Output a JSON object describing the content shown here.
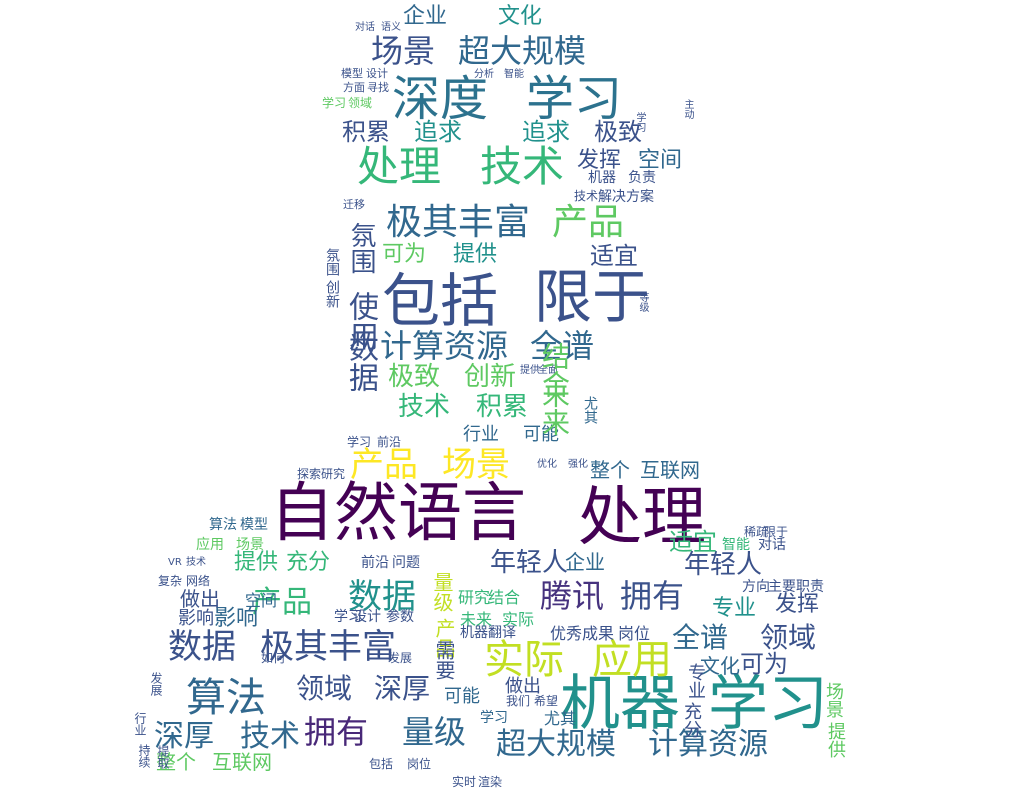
{
  "words": [
    {
      "text": "自然语言",
      "color": "#440154"
    },
    {
      "text": "处理",
      "color": "#440154"
    },
    {
      "text": "包括",
      "color": "#3b528b"
    },
    {
      "text": "限于",
      "color": "#3b528b"
    },
    {
      "text": "机器",
      "color": "#21918c"
    },
    {
      "text": "学习",
      "color": "#21918c"
    },
    {
      "text": "深度",
      "color": "#2c728e"
    },
    {
      "text": "学习",
      "color": "#2c728e"
    },
    {
      "text": "处理",
      "color": "#35b779"
    },
    {
      "text": "技术",
      "color": "#35b779"
    },
    {
      "text": "极其丰富",
      "color": "#31688e"
    },
    {
      "text": "产品",
      "color": "#5ec962"
    },
    {
      "text": "场景",
      "color": "#3b528b"
    },
    {
      "text": "超大规模",
      "color": "#31688e"
    },
    {
      "text": "企业",
      "color": "#31688e"
    },
    {
      "text": "文化",
      "color": "#21918c"
    },
    {
      "text": "积累",
      "color": "#3b528b"
    },
    {
      "text": "追求",
      "color": "#21918c"
    },
    {
      "text": "追求",
      "color": "#21918c"
    },
    {
      "text": "极致",
      "color": "#3b528b"
    },
    {
      "text": "发挥",
      "color": "#3b528b"
    },
    {
      "text": "空间",
      "color": "#31688e"
    },
    {
      "text": "氛围",
      "color": "#3b528b"
    },
    {
      "text": "适宜",
      "color": "#3b528b"
    },
    {
      "text": "可为",
      "color": "#5ec962"
    },
    {
      "text": "提供",
      "color": "#21918c"
    },
    {
      "text": "计算资源",
      "color": "#31688e"
    },
    {
      "text": "全谱",
      "color": "#31688e"
    },
    {
      "text": "极致",
      "color": "#5ec962"
    },
    {
      "text": "创新",
      "color": "#5ec962"
    },
    {
      "text": "技术",
      "color": "#35b779"
    },
    {
      "text": "积累",
      "color": "#35b779"
    },
    {
      "text": "产品",
      "color": "#fde725"
    },
    {
      "text": "场景",
      "color": "#fde725"
    },
    {
      "text": "数据",
      "color": "#21918c"
    },
    {
      "text": "腾讯",
      "color": "#46327e"
    },
    {
      "text": "拥有",
      "color": "#3b528b"
    },
    {
      "text": "实际",
      "color": "#c2df23"
    },
    {
      "text": "应用",
      "color": "#c2df23"
    },
    {
      "text": "数据",
      "color": "#3b528b"
    },
    {
      "text": "极其丰富",
      "color": "#3b528b"
    },
    {
      "text": "算法",
      "color": "#31688e"
    },
    {
      "text": "领域",
      "color": "#3b528b"
    },
    {
      "text": "深厚",
      "color": "#3b528b"
    },
    {
      "text": "深厚",
      "color": "#31688e"
    },
    {
      "text": "技术",
      "color": "#31688e"
    },
    {
      "text": "拥有",
      "color": "#482878"
    },
    {
      "text": "量级",
      "color": "#31688e"
    },
    {
      "text": "超大规模",
      "color": "#31688e"
    },
    {
      "text": "计算资源",
      "color": "#31688e"
    },
    {
      "text": "整个",
      "color": "#5ec962"
    },
    {
      "text": "互联网",
      "color": "#5ec962"
    },
    {
      "text": "全谱",
      "color": "#31688e"
    },
    {
      "text": "领域",
      "color": "#3b528b"
    },
    {
      "text": "可为",
      "color": "#3b528b"
    },
    {
      "text": "文化",
      "color": "#31688e"
    },
    {
      "text": "年轻人",
      "color": "#3b528b"
    },
    {
      "text": "年轻人",
      "color": "#3b528b"
    },
    {
      "text": "适宜",
      "color": "#35b779"
    },
    {
      "text": "企业",
      "color": "#31688e"
    },
    {
      "text": "提供",
      "color": "#35b779"
    },
    {
      "text": "充分",
      "color": "#35b779"
    },
    {
      "text": "产品",
      "color": "#35b779"
    },
    {
      "text": "发挥",
      "color": "#3b528b"
    },
    {
      "text": "专业",
      "color": "#21918c"
    },
    {
      "text": "影响",
      "color": "#31688e"
    },
    {
      "text": "整个",
      "color": "#31688e"
    },
    {
      "text": "互联网",
      "color": "#31688e"
    },
    {
      "text": "行业",
      "color": "#31688e"
    },
    {
      "text": "可能",
      "color": "#31688e"
    },
    {
      "text": "空间",
      "color": "#31688e"
    },
    {
      "text": "做出",
      "color": "#3b528b"
    },
    {
      "text": "影响",
      "color": "#3b528b"
    },
    {
      "text": "负责",
      "color": "#3b528b"
    },
    {
      "text": "机器",
      "color": "#3b528b"
    },
    {
      "text": "技术",
      "color": "#3b528b"
    },
    {
      "text": "解决方案",
      "color": "#3b528b"
    },
    {
      "text": "做出",
      "color": "#3b528b"
    },
    {
      "text": "尤其",
      "color": "#31688e"
    },
    {
      "text": "可能",
      "color": "#31688e"
    },
    {
      "text": "学习",
      "color": "#31688e"
    },
    {
      "text": "尤其",
      "color": "#31688e"
    },
    {
      "text": "前沿",
      "color": "#3b528b"
    },
    {
      "text": "问题",
      "color": "#3b528b"
    },
    {
      "text": "实际",
      "color": "#35b779"
    },
    {
      "text": "未来",
      "color": "#35b779"
    },
    {
      "text": "研究",
      "color": "#35b779"
    },
    {
      "text": "结合",
      "color": "#35b779"
    },
    {
      "text": "优秀成果",
      "color": "#3b528b"
    },
    {
      "text": "岗位",
      "color": "#3b528b"
    },
    {
      "text": "机器翻译",
      "color": "#3b528b"
    },
    {
      "text": "智能",
      "color": "#35b779"
    },
    {
      "text": "对话",
      "color": "#3b528b"
    },
    {
      "text": "主要职责",
      "color": "#3b528b"
    },
    {
      "text": "方向",
      "color": "#3b528b"
    },
    {
      "text": "应用",
      "color": "#5ec962"
    },
    {
      "text": "场景",
      "color": "#5ec962"
    },
    {
      "text": "算法",
      "color": "#31688e"
    },
    {
      "text": "模型",
      "color": "#31688e"
    },
    {
      "text": "VR",
      "color": "#3b528b"
    },
    {
      "text": "技术",
      "color": "#3b528b"
    },
    {
      "text": "复杂",
      "color": "#3b528b"
    },
    {
      "text": "网络",
      "color": "#3b528b"
    },
    {
      "text": "模型",
      "color": "#3b528b"
    },
    {
      "text": "设计",
      "color": "#3b528b"
    },
    {
      "text": "方面",
      "color": "#3b528b"
    },
    {
      "text": "寻找",
      "color": "#3b528b"
    },
    {
      "text": "学习",
      "color": "#5ec962"
    },
    {
      "text": "领域",
      "color": "#5ec962"
    },
    {
      "text": "迁移",
      "color": "#3b528b"
    },
    {
      "text": "探索",
      "color": "#3b528b"
    },
    {
      "text": "研究",
      "color": "#3b528b"
    },
    {
      "text": "学习",
      "color": "#3b528b"
    },
    {
      "text": "前沿",
      "color": "#3b528b"
    },
    {
      "text": "实时",
      "color": "#3b528b"
    },
    {
      "text": "渲染",
      "color": "#3b528b"
    },
    {
      "text": "包括",
      "color": "#3b528b"
    },
    {
      "text": "岗位",
      "color": "#3b528b"
    },
    {
      "text": "对话",
      "color": "#3b528b"
    },
    {
      "text": "语义",
      "color": "#3b528b"
    },
    {
      "text": "分析",
      "color": "#3b528b"
    },
    {
      "text": "智能",
      "color": "#3b528b"
    },
    {
      "text": "全面",
      "color": "#3b528b"
    },
    {
      "text": "提供",
      "color": "#3b528b"
    },
    {
      "text": "等级",
      "color": "#3b528b"
    },
    {
      "text": "学习",
      "color": "#3b528b"
    },
    {
      "text": "主动",
      "color": "#3b528b"
    },
    {
      "text": "如何",
      "color": "#3b528b"
    },
    {
      "text": "发展",
      "color": "#3b528b"
    },
    {
      "text": "优化",
      "color": "#3b528b"
    },
    {
      "text": "强化",
      "color": "#3b528b"
    },
    {
      "text": "学习",
      "color": "#3b528b"
    },
    {
      "text": "设计",
      "color": "#3b528b"
    },
    {
      "text": "参数",
      "color": "#3b528b"
    },
    {
      "text": "我们",
      "color": "#3b528b"
    },
    {
      "text": "希望",
      "color": "#3b528b"
    },
    {
      "text": "使用",
      "color": "#3b528b"
    },
    {
      "text": "数据",
      "color": "#3b528b"
    },
    {
      "text": "创新",
      "color": "#3b528b"
    },
    {
      "text": "氛围",
      "color": "#3b528b"
    },
    {
      "text": "结合",
      "color": "#5ec962"
    },
    {
      "text": "未来",
      "color": "#5ec962"
    },
    {
      "text": "量级",
      "color": "#c2df23"
    },
    {
      "text": "产品",
      "color": "#c2df23"
    },
    {
      "text": "需要",
      "color": "#3b528b"
    },
    {
      "text": "专业",
      "color": "#3b528b"
    },
    {
      "text": "充分",
      "color": "#3b528b"
    },
    {
      "text": "场景",
      "color": "#5ec962"
    },
    {
      "text": "提供",
      "color": "#5ec962"
    },
    {
      "text": "行业",
      "color": "#3b528b"
    },
    {
      "text": "发展",
      "color": "#3b528b"
    },
    {
      "text": "持续",
      "color": "#3b528b"
    },
    {
      "text": "提取",
      "color": "#3b528b"
    },
    {
      "text": "稀疏",
      "color": "#3b528b"
    },
    {
      "text": "限于",
      "color": "#3b528b"
    },
    {
      "text": "负责",
      "color": "#3b528b"
    },
    {
      "text": "AR",
      "color": "#3b528b"
    },
    {
      "text": "VR",
      "color": "#3b528b"
    }
  ]
}
